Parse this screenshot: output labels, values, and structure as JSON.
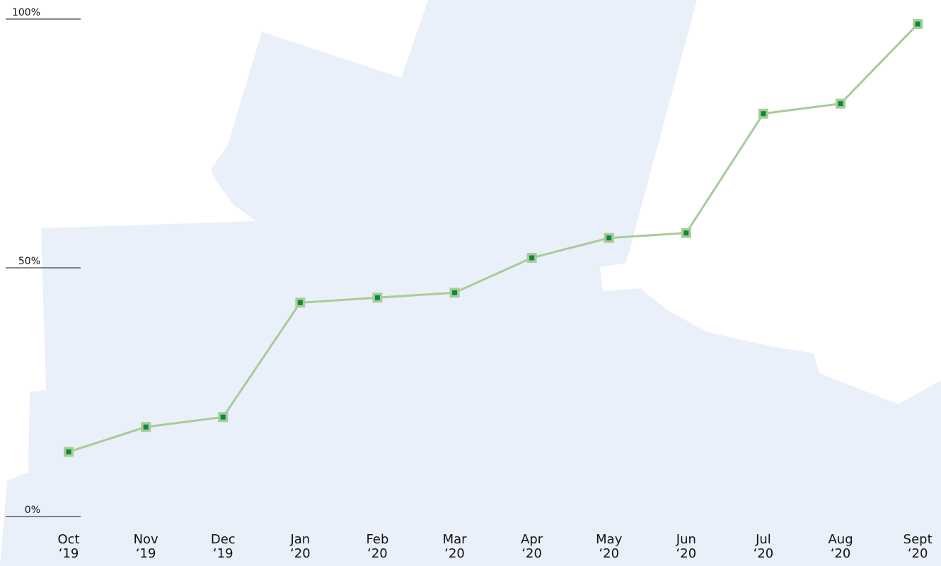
{
  "chart_data": {
    "type": "line",
    "categories": [
      "Oct\n‘19",
      "Nov\n‘19",
      "Dec\n‘19",
      "Jan\n‘20",
      "Feb\n‘20",
      "Mar\n‘20",
      "Apr\n‘20",
      "May\n‘20",
      "Jun\n‘20",
      "Jul\n‘20",
      "Aug\n‘20",
      "Sept\n‘20"
    ],
    "values": [
      13,
      18,
      20,
      43,
      44,
      45,
      52,
      56,
      57,
      81,
      83,
      99
    ],
    "color": "#a8cb98",
    "marker_color": "#0a8a3c",
    "ylim": [
      0,
      100
    ],
    "yticks": [
      {
        "value": 0,
        "label": "0%"
      },
      {
        "value": 50,
        "label": "50%"
      },
      {
        "value": 100,
        "label": "100%"
      }
    ]
  }
}
